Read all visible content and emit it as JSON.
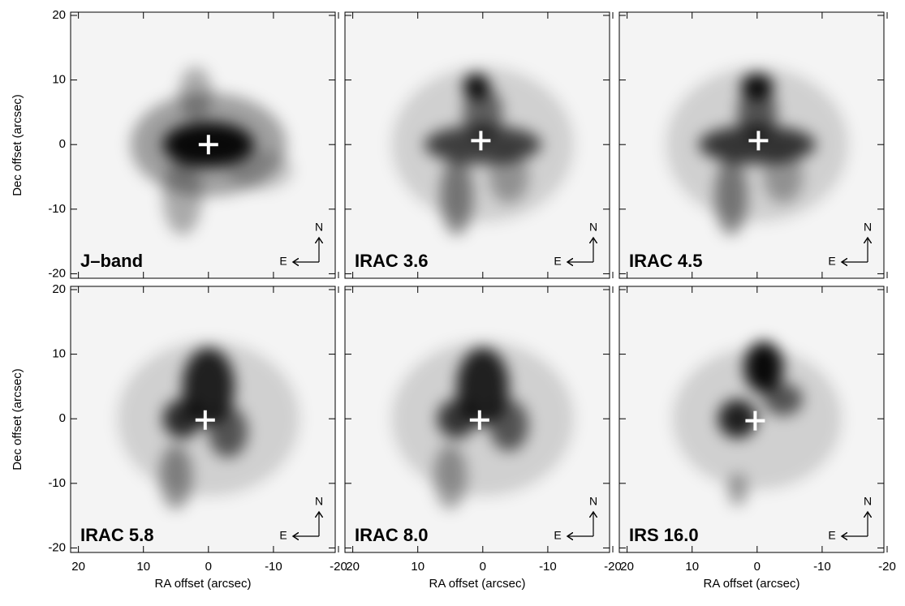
{
  "chart_data": [
    {
      "type": "image",
      "title": "J–band",
      "xlim": [
        21.2,
        -19.5
      ],
      "ylim": [
        -20.7,
        20.5
      ],
      "xticks": [
        20,
        10,
        0,
        -10,
        -20
      ],
      "yticks": [
        -20,
        -10,
        0,
        10,
        20
      ],
      "ylabel": "Dec offset (arcsec)",
      "marker": {
        "x": 0,
        "y": 0
      },
      "compass": {
        "north": "N",
        "east": "E"
      }
    },
    {
      "type": "image",
      "title": "IRAC 3.6",
      "xlim": [
        21.2,
        -19.5
      ],
      "ylim": [
        -20.7,
        20.5
      ],
      "xticks": [
        20,
        10,
        0,
        -10,
        -20
      ],
      "yticks": [
        -20,
        -10,
        0,
        10,
        20
      ],
      "marker": {
        "x": 0.3,
        "y": 0.6
      },
      "compass": {
        "north": "N",
        "east": "E"
      }
    },
    {
      "type": "image",
      "title": "IRAC 4.5",
      "xlim": [
        21.2,
        -19.5
      ],
      "ylim": [
        -20.7,
        20.5
      ],
      "xticks": [
        20,
        10,
        0,
        -10,
        -20
      ],
      "yticks": [
        -20,
        -10,
        0,
        10,
        20
      ],
      "marker": {
        "x": -0.2,
        "y": 0.6
      },
      "compass": {
        "north": "N",
        "east": "E"
      }
    },
    {
      "type": "image",
      "title": "IRAC 5.8",
      "xlim": [
        21.2,
        -19.5
      ],
      "ylim": [
        -20.7,
        20.5
      ],
      "xticks": [
        20,
        10,
        0,
        -10,
        -20
      ],
      "yticks": [
        -20,
        -10,
        0,
        10,
        20
      ],
      "xlabel": "RA offset (arcsec)",
      "ylabel": "Dec offset (arcsec)",
      "marker": {
        "x": 0.5,
        "y": -0.2
      },
      "compass": {
        "north": "N",
        "east": "E"
      }
    },
    {
      "type": "image",
      "title": "IRAC 8.0",
      "xlim": [
        21.2,
        -19.5
      ],
      "ylim": [
        -20.7,
        20.5
      ],
      "xticks": [
        20,
        10,
        0,
        -10,
        -20
      ],
      "yticks": [
        -20,
        -10,
        0,
        10,
        20
      ],
      "xlabel": "RA offset (arcsec)",
      "marker": {
        "x": 0.5,
        "y": -0.2
      },
      "compass": {
        "north": "N",
        "east": "E"
      }
    },
    {
      "type": "image",
      "title": "IRS 16.0",
      "xlim": [
        21.2,
        -19.5
      ],
      "ylim": [
        -20.7,
        20.5
      ],
      "xticks": [
        20,
        10,
        0,
        -10,
        -20
      ],
      "yticks": [
        -20,
        -10,
        0,
        10,
        20
      ],
      "xlabel": "RA offset (arcsec)",
      "marker": {
        "x": 0.3,
        "y": -0.3
      },
      "compass": {
        "north": "N",
        "east": "E"
      }
    }
  ]
}
